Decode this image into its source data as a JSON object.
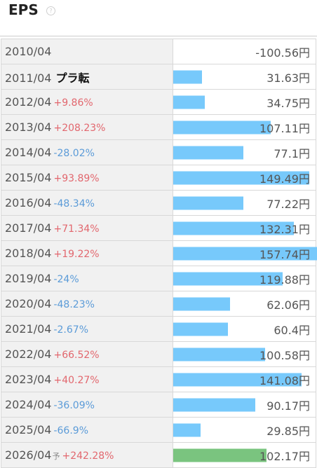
{
  "title": "EPS",
  "help_icon": "question-circle-icon",
  "colors": {
    "bar": "#77c9fb",
    "bar_forecast": "#7ac47f",
    "up": "#e2676e",
    "down": "#5b9bd8"
  },
  "rows": [
    {
      "year": "2010/04",
      "change": "",
      "dir": "",
      "note": "",
      "fc": "",
      "value": "-100.56円",
      "num": -100.56
    },
    {
      "year": "2011/04",
      "change": "",
      "dir": "",
      "note": "プラ転",
      "fc": "",
      "value": "31.63円",
      "num": 31.63
    },
    {
      "year": "2012/04",
      "change": "+9.86%",
      "dir": "up",
      "note": "",
      "fc": "",
      "value": "34.75円",
      "num": 34.75
    },
    {
      "year": "2013/04",
      "change": "+208.23%",
      "dir": "up",
      "note": "",
      "fc": "",
      "value": "107.11円",
      "num": 107.11
    },
    {
      "year": "2014/04",
      "change": "-28.02%",
      "dir": "down",
      "note": "",
      "fc": "",
      "value": "77.1円",
      "num": 77.1
    },
    {
      "year": "2015/04",
      "change": "+93.89%",
      "dir": "up",
      "note": "",
      "fc": "",
      "value": "149.49円",
      "num": 149.49
    },
    {
      "year": "2016/04",
      "change": "-48.34%",
      "dir": "down",
      "note": "",
      "fc": "",
      "value": "77.22円",
      "num": 77.22
    },
    {
      "year": "2017/04",
      "change": "+71.34%",
      "dir": "up",
      "note": "",
      "fc": "",
      "value": "132.31円",
      "num": 132.31
    },
    {
      "year": "2018/04",
      "change": "+19.22%",
      "dir": "up",
      "note": "",
      "fc": "",
      "value": "157.74円",
      "num": 157.74
    },
    {
      "year": "2019/04",
      "change": "-24%",
      "dir": "down",
      "note": "",
      "fc": "",
      "value": "119.88円",
      "num": 119.88
    },
    {
      "year": "2020/04",
      "change": "-48.23%",
      "dir": "down",
      "note": "",
      "fc": "",
      "value": "62.06円",
      "num": 62.06
    },
    {
      "year": "2021/04",
      "change": "-2.67%",
      "dir": "down",
      "note": "",
      "fc": "",
      "value": "60.4円",
      "num": 60.4
    },
    {
      "year": "2022/04",
      "change": "+66.52%",
      "dir": "up",
      "note": "",
      "fc": "",
      "value": "100.58円",
      "num": 100.58
    },
    {
      "year": "2023/04",
      "change": "+40.27%",
      "dir": "up",
      "note": "",
      "fc": "",
      "value": "141.08円",
      "num": 141.08
    },
    {
      "year": "2024/04",
      "change": "-36.09%",
      "dir": "down",
      "note": "",
      "fc": "",
      "value": "90.17円",
      "num": 90.17
    },
    {
      "year": "2025/04",
      "change": "-66.9%",
      "dir": "down",
      "note": "",
      "fc": "",
      "value": "29.85円",
      "num": 29.85
    },
    {
      "year": "2026/04",
      "change": "+242.28%",
      "dir": "up",
      "note": "",
      "fc": "予",
      "value": "102.17円",
      "num": 102.17,
      "forecast": true
    }
  ]
}
